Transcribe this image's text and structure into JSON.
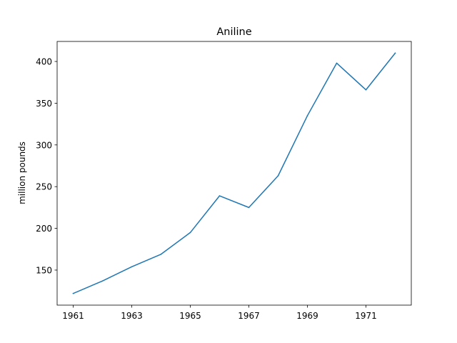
{
  "chart_data": {
    "type": "line",
    "title": "Aniline",
    "xlabel": "",
    "ylabel": "million pounds",
    "x": [
      1961,
      1962,
      1963,
      1964,
      1965,
      1966,
      1967,
      1968,
      1969,
      1970,
      1971,
      1972
    ],
    "series": [
      {
        "values": [
          122,
          137,
          154,
          169,
          195,
          239,
          225,
          263,
          335,
          398,
          366,
          410
        ]
      }
    ],
    "xticks": [
      1961,
      1963,
      1965,
      1967,
      1969,
      1971
    ],
    "yticks": [
      150,
      200,
      250,
      300,
      350,
      400
    ],
    "xlim": [
      1960.45,
      1972.55
    ],
    "ylim": [
      108,
      424
    ],
    "grid": false,
    "colors": {
      "line": "#1f77b4",
      "axes": "#000000"
    }
  }
}
